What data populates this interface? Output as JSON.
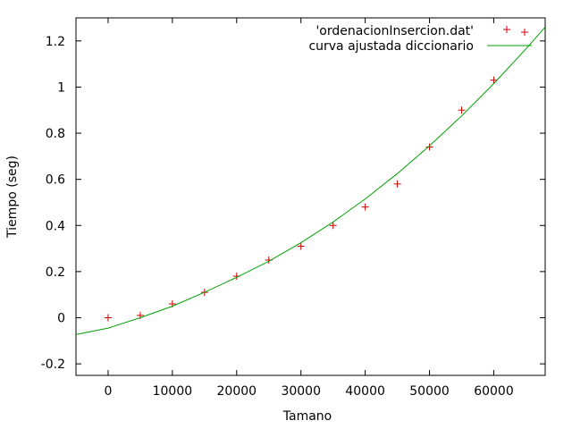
{
  "chart_data": {
    "type": "scatter",
    "xlabel": "Tamano",
    "ylabel": "Tiempo (seg)",
    "xlim": [
      -5000,
      68000
    ],
    "ylim": [
      -0.25,
      1.3
    ],
    "xticks": [
      {
        "value": 0,
        "label": "0"
      },
      {
        "value": 10000,
        "label": "10000"
      },
      {
        "value": 20000,
        "label": "20000"
      },
      {
        "value": 30000,
        "label": "30000"
      },
      {
        "value": 40000,
        "label": "40000"
      },
      {
        "value": 50000,
        "label": "50000"
      },
      {
        "value": 60000,
        "label": "60000"
      }
    ],
    "yticks": [
      {
        "value": -0.2,
        "label": "-0.2"
      },
      {
        "value": 0,
        "label": "0"
      },
      {
        "value": 0.2,
        "label": "0.2"
      },
      {
        "value": 0.4,
        "label": "0.4"
      },
      {
        "value": 0.6,
        "label": "0.6"
      },
      {
        "value": 0.8,
        "label": "0.8"
      },
      {
        "value": 1,
        "label": "1"
      },
      {
        "value": 1.2,
        "label": "1.2"
      }
    ],
    "grid": false,
    "legend_position": "top-right",
    "series": [
      {
        "name": "'ordenacionInsercion.dat'",
        "kind": "points",
        "marker": "plus",
        "color": "#cc0000",
        "x": [
          0,
          5000,
          10000,
          15000,
          20000,
          25000,
          30000,
          35000,
          40000,
          45000,
          50000,
          55000,
          60000
        ],
        "y": [
          0.0,
          0.01,
          0.06,
          0.11,
          0.18,
          0.25,
          0.31,
          0.4,
          0.48,
          0.58,
          0.74,
          0.9,
          1.03
        ]
      },
      {
        "name": "curva ajustada diccionario",
        "kind": "line",
        "color": "#00a000",
        "x": [
          -5000,
          0,
          5000,
          10000,
          15000,
          20000,
          25000,
          30000,
          35000,
          40000,
          45000,
          50000,
          55000,
          60000,
          65000,
          68000
        ],
        "y": [
          -0.073,
          -0.045,
          0.0,
          0.05,
          0.11,
          0.175,
          0.245,
          0.325,
          0.415,
          0.515,
          0.625,
          0.745,
          0.875,
          1.015,
          1.165,
          1.26
        ]
      }
    ]
  }
}
